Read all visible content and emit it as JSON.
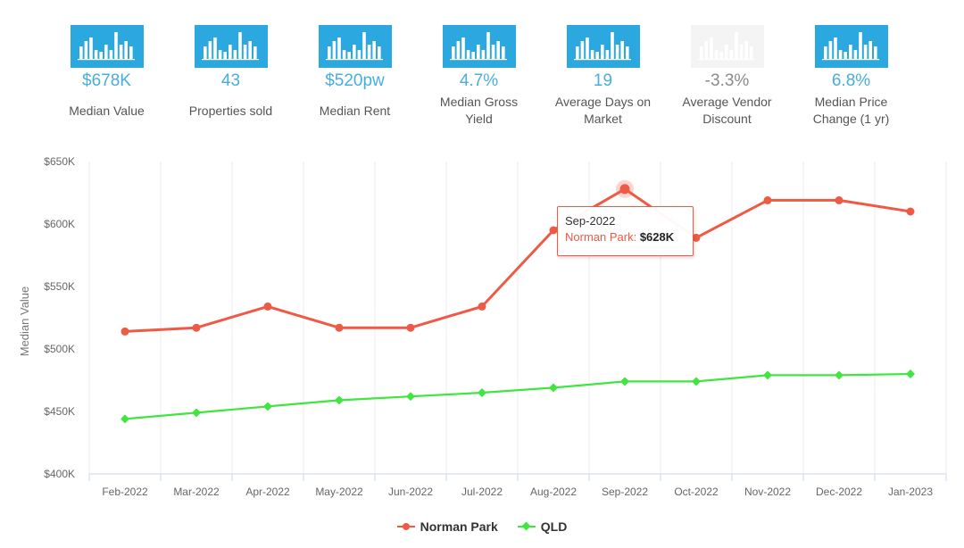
{
  "stats": [
    {
      "value": "$678K",
      "label": "Median Value",
      "enabled": true
    },
    {
      "value": "43",
      "label": "Properties sold",
      "enabled": true
    },
    {
      "value": "$520pw",
      "label": "Median Rent",
      "enabled": true
    },
    {
      "value": "4.7%",
      "label": "Median Gross Yield",
      "enabled": true
    },
    {
      "value": "19",
      "label": "Average Days on Market",
      "enabled": true
    },
    {
      "value": "-3.3%",
      "label": "Average Vendor Discount",
      "enabled": false
    },
    {
      "value": "6.8%",
      "label": "Median Price Change (1 yr)",
      "enabled": true
    }
  ],
  "colors": {
    "accent": "#2ba8e0",
    "series_1": "#ee5a45",
    "series_2": "#3ee63e"
  },
  "tooltip": {
    "date": "Sep-2022",
    "series": "Norman Park:",
    "value": "$628K"
  },
  "chart_data": {
    "type": "line",
    "title": "",
    "xlabel": "",
    "ylabel": "Median Value",
    "ylim": [
      400000,
      650000
    ],
    "y_ticks": [
      "$400K",
      "$450K",
      "$500K",
      "$550K",
      "$600K",
      "$650K"
    ],
    "y_tick_values": [
      400000,
      450000,
      500000,
      550000,
      600000,
      650000
    ],
    "categories": [
      "Feb-2022",
      "Mar-2022",
      "Apr-2022",
      "May-2022",
      "Jun-2022",
      "Jul-2022",
      "Aug-2022",
      "Sep-2022",
      "Oct-2022",
      "Nov-2022",
      "Dec-2022",
      "Jan-2023"
    ],
    "series": [
      {
        "name": "Norman Park",
        "values": [
          514000,
          517000,
          534000,
          517000,
          517000,
          534000,
          595000,
          628000,
          589000,
          619000,
          619000,
          610000
        ]
      },
      {
        "name": "QLD",
        "values": [
          444000,
          449000,
          454000,
          459000,
          462000,
          465000,
          469000,
          474000,
          474000,
          479000,
          479000,
          480000
        ]
      }
    ],
    "legend_position": "bottom-center",
    "grid": "vertical"
  }
}
